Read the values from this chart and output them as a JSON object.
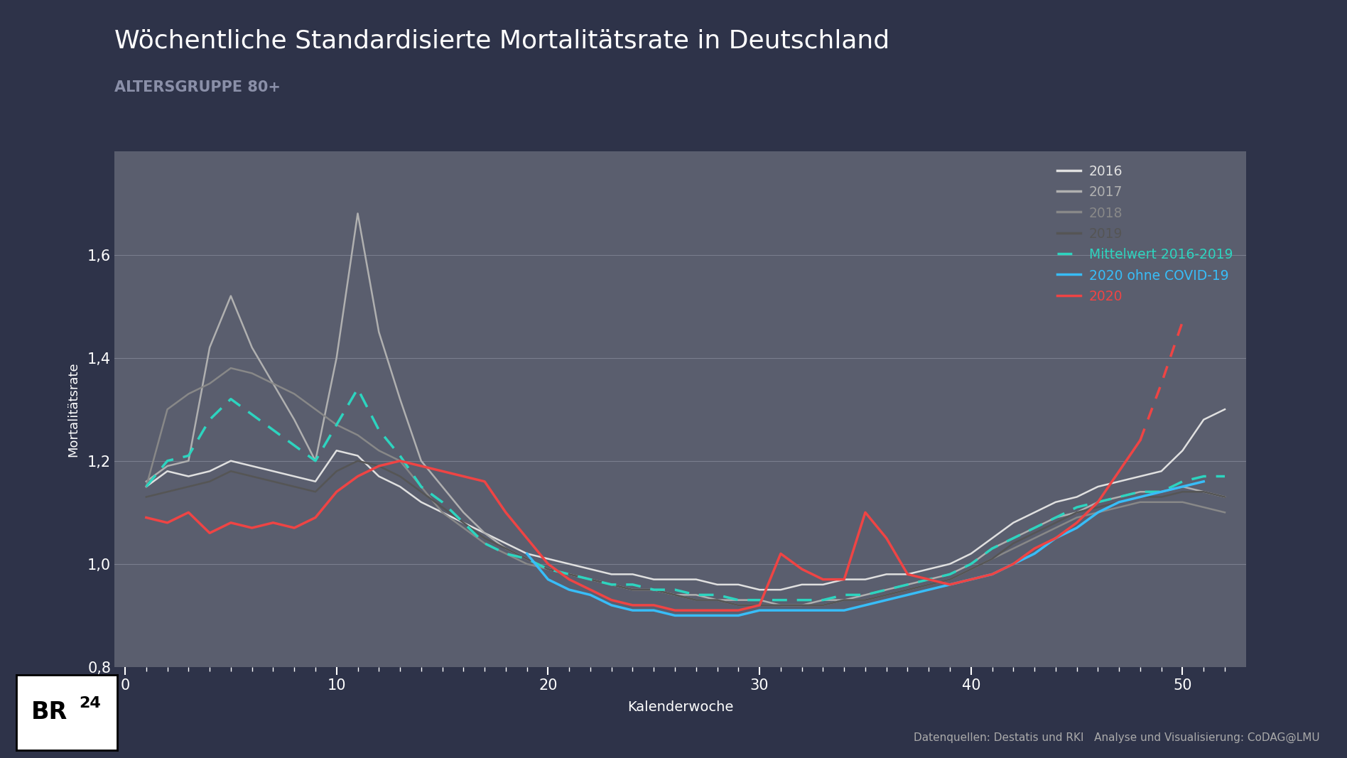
{
  "title": "Wöchentliche Standardisierte Mortalitätsrate in Deutschland",
  "subtitle": "ALTERSGRUPPE 80+",
  "xlabel": "Kalenderwoche",
  "ylabel": "Mortalitätsrate",
  "bg_outer": "#2e3349",
  "bg_plot": "#5a5e6e",
  "text_color_title": "#ffffff",
  "text_color_subtitle": "#8a8fa8",
  "text_color_axis": "#ffffff",
  "grid_color": "#7a7e8e",
  "ylim": [
    0.8,
    1.8
  ],
  "yticks": [
    0.8,
    1.0,
    1.2,
    1.4,
    1.6
  ],
  "ytick_labels": [
    "0,8",
    "1,0",
    "1,2",
    "1,4",
    "1,6"
  ],
  "xticks": [
    0,
    10,
    20,
    30,
    40,
    50
  ],
  "footnote": "Datenquellen: Destatis und RKI   Analyse und Visualisierung: CoDAG@LMU",
  "weeks": [
    1,
    2,
    3,
    4,
    5,
    6,
    7,
    8,
    9,
    10,
    11,
    12,
    13,
    14,
    15,
    16,
    17,
    18,
    19,
    20,
    21,
    22,
    23,
    24,
    25,
    26,
    27,
    28,
    29,
    30,
    31,
    32,
    33,
    34,
    35,
    36,
    37,
    38,
    39,
    40,
    41,
    42,
    43,
    44,
    45,
    46,
    47,
    48,
    49,
    50,
    51,
    52
  ],
  "y2016": [
    1.15,
    1.18,
    1.17,
    1.18,
    1.2,
    1.19,
    1.18,
    1.17,
    1.16,
    1.22,
    1.21,
    1.17,
    1.15,
    1.12,
    1.1,
    1.08,
    1.06,
    1.04,
    1.02,
    1.01,
    1.0,
    0.99,
    0.98,
    0.98,
    0.97,
    0.97,
    0.97,
    0.96,
    0.96,
    0.95,
    0.95,
    0.96,
    0.96,
    0.97,
    0.97,
    0.98,
    0.98,
    0.99,
    1.0,
    1.02,
    1.05,
    1.08,
    1.1,
    1.12,
    1.13,
    1.15,
    1.16,
    1.17,
    1.18,
    1.22,
    1.28,
    1.3
  ],
  "y2017": [
    1.16,
    1.19,
    1.2,
    1.42,
    1.52,
    1.42,
    1.35,
    1.28,
    1.2,
    1.4,
    1.68,
    1.45,
    1.32,
    1.2,
    1.15,
    1.1,
    1.06,
    1.03,
    1.01,
    0.99,
    0.98,
    0.97,
    0.96,
    0.95,
    0.95,
    0.94,
    0.94,
    0.93,
    0.93,
    0.93,
    0.92,
    0.92,
    0.93,
    0.93,
    0.94,
    0.95,
    0.96,
    0.97,
    0.98,
    1.0,
    1.03,
    1.05,
    1.07,
    1.09,
    1.1,
    1.12,
    1.13,
    1.14,
    1.14,
    1.15,
    1.14,
    1.13
  ],
  "y2018": [
    1.15,
    1.3,
    1.33,
    1.35,
    1.38,
    1.37,
    1.35,
    1.33,
    1.3,
    1.27,
    1.25,
    1.22,
    1.2,
    1.15,
    1.1,
    1.07,
    1.04,
    1.02,
    1.0,
    0.99,
    0.98,
    0.97,
    0.96,
    0.95,
    0.95,
    0.94,
    0.93,
    0.93,
    0.92,
    0.92,
    0.92,
    0.92,
    0.92,
    0.93,
    0.93,
    0.94,
    0.95,
    0.96,
    0.97,
    0.99,
    1.01,
    1.03,
    1.05,
    1.07,
    1.09,
    1.1,
    1.11,
    1.12,
    1.12,
    1.12,
    1.11,
    1.1
  ],
  "y2019": [
    1.13,
    1.14,
    1.15,
    1.16,
    1.18,
    1.17,
    1.16,
    1.15,
    1.14,
    1.18,
    1.2,
    1.19,
    1.17,
    1.14,
    1.11,
    1.08,
    1.05,
    1.03,
    1.01,
    0.99,
    0.98,
    0.97,
    0.96,
    0.95,
    0.95,
    0.94,
    0.93,
    0.93,
    0.92,
    0.92,
    0.92,
    0.92,
    0.92,
    0.93,
    0.93,
    0.94,
    0.95,
    0.96,
    0.97,
    0.99,
    1.01,
    1.04,
    1.06,
    1.08,
    1.1,
    1.11,
    1.12,
    1.13,
    1.13,
    1.14,
    1.14,
    1.13
  ],
  "y_mean": [
    1.15,
    1.2,
    1.21,
    1.28,
    1.32,
    1.29,
    1.26,
    1.23,
    1.2,
    1.27,
    1.34,
    1.26,
    1.21,
    1.15,
    1.12,
    1.08,
    1.04,
    1.02,
    1.01,
    0.99,
    0.98,
    0.97,
    0.96,
    0.96,
    0.95,
    0.95,
    0.94,
    0.94,
    0.93,
    0.93,
    0.93,
    0.93,
    0.93,
    0.94,
    0.94,
    0.95,
    0.96,
    0.97,
    0.98,
    1.0,
    1.03,
    1.05,
    1.07,
    1.09,
    1.11,
    1.12,
    1.13,
    1.14,
    1.14,
    1.16,
    1.17,
    1.17
  ],
  "y2020": [
    1.09,
    1.08,
    1.1,
    1.06,
    1.08,
    1.07,
    1.08,
    1.07,
    1.09,
    1.14,
    1.17,
    1.19,
    1.2,
    1.19,
    1.18,
    1.17,
    1.16,
    1.1,
    1.05,
    1.0,
    0.97,
    0.95,
    0.93,
    0.92,
    0.92,
    0.91,
    0.91,
    0.91,
    0.91,
    0.92,
    1.02,
    0.99,
    0.97,
    0.97,
    1.1,
    1.05,
    0.98,
    0.97,
    0.96,
    0.97,
    0.98,
    1.0,
    1.03,
    1.05,
    1.08,
    1.12,
    1.18,
    1.24,
    1.35,
    1.47,
    null,
    null
  ],
  "y2020_no_covid": [
    null,
    null,
    null,
    null,
    null,
    null,
    null,
    null,
    null,
    null,
    null,
    null,
    null,
    null,
    null,
    null,
    null,
    null,
    1.02,
    0.97,
    0.95,
    0.94,
    0.92,
    0.91,
    0.91,
    0.9,
    0.9,
    0.9,
    0.9,
    0.91,
    0.91,
    0.91,
    0.91,
    0.91,
    0.92,
    0.93,
    0.94,
    0.95,
    0.96,
    0.97,
    0.98,
    1.0,
    1.02,
    1.05,
    1.07,
    1.1,
    1.12,
    1.13,
    1.14,
    1.15,
    1.16,
    null
  ],
  "color_2016": "#e0e0e0",
  "color_2017": "#b0b0b0",
  "color_2018": "#888888",
  "color_2019": "#555555",
  "color_mean": "#2dd4bf",
  "color_2020_no_covid": "#38bdf8",
  "color_2020": "#ef4444"
}
